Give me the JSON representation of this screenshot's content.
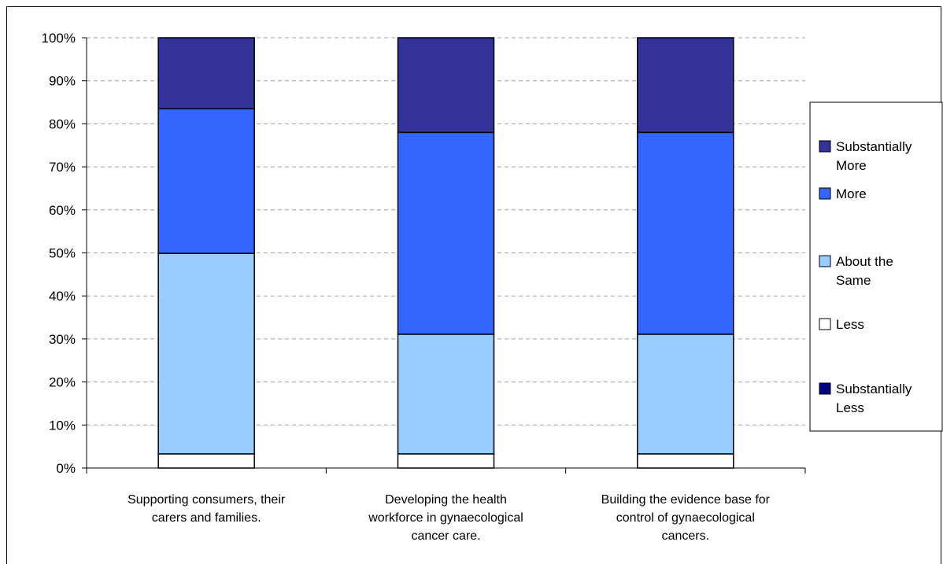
{
  "chart_data": {
    "type": "bar",
    "stacked": true,
    "percent_stacked": true,
    "categories": [
      "Supporting consumers, their carers and families.",
      "Developing the health workforce in gynaecological cancer care.",
      "Building the evidence base for control of gynaecological cancers."
    ],
    "category_lines": [
      [
        "Supporting consumers, their",
        "carers and families."
      ],
      [
        "Developing the health",
        "workforce in gynaecological",
        "cancer care."
      ],
      [
        "Building the evidence base for",
        "control of gynaecological",
        "cancers."
      ]
    ],
    "series": [
      {
        "name": "Substantially Less",
        "label_lines": [
          "Substantially",
          "Less"
        ],
        "color": "#000080",
        "values": [
          0,
          0,
          0
        ]
      },
      {
        "name": "Less",
        "label_lines": [
          "Less"
        ],
        "color": "#ffffff",
        "values": [
          3.3,
          3.3,
          3.3
        ]
      },
      {
        "name": "About the Same",
        "label_lines": [
          "About the",
          "Same"
        ],
        "color": "#99ccff",
        "values": [
          46.6,
          27.8,
          27.8
        ]
      },
      {
        "name": "More",
        "label_lines": [
          "More"
        ],
        "color": "#3366ff",
        "values": [
          33.6,
          46.9,
          46.9
        ]
      },
      {
        "name": "Substantially More",
        "label_lines": [
          "Substantially",
          "More"
        ],
        "color": "#333399",
        "values": [
          16.5,
          22.0,
          22.0
        ]
      }
    ],
    "ylim": [
      0,
      100
    ],
    "yticks": [
      "0%",
      "10%",
      "20%",
      "30%",
      "40%",
      "50%",
      "60%",
      "70%",
      "80%",
      "90%",
      "100%"
    ],
    "grid": true,
    "legend_position": "right"
  }
}
